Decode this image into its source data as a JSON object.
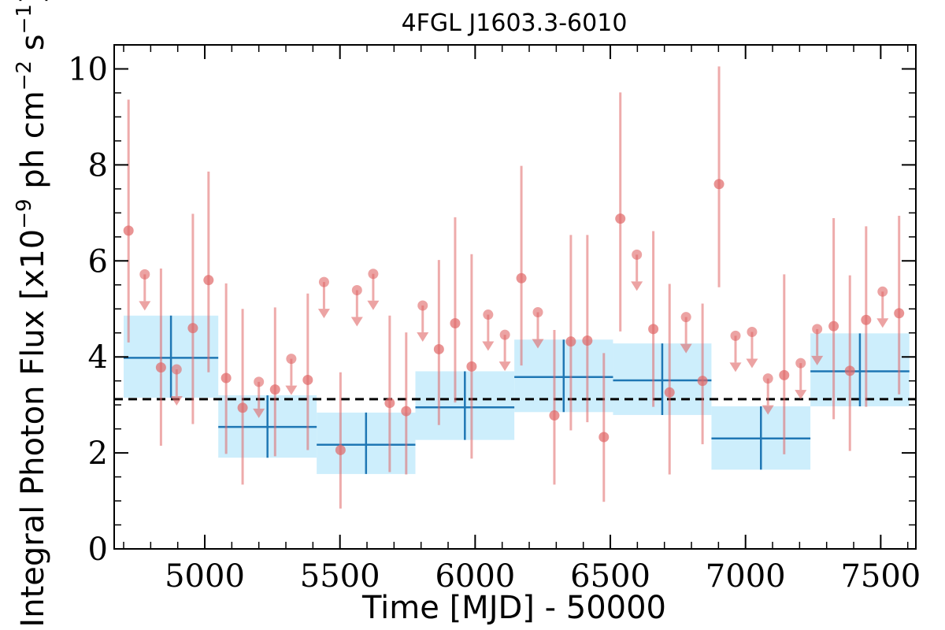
{
  "chart_data": {
    "type": "scatter",
    "title": "4FGL J1603.3-6010",
    "xlabel": "Time [MJD] - 50000",
    "ylabel_main": "Integral Photon Flux [x10",
    "ylabel_exp1": "−9",
    "ylabel_mid": " ph cm",
    "ylabel_exp2": "−2",
    "ylabel_end": " s",
    "ylabel_exp3": "−1",
    "ylabel_close": "]",
    "xlim": [
      4665,
      7630
    ],
    "ylim": [
      0,
      10.5
    ],
    "xticks": [
      {
        "value": 5000,
        "label": "5000"
      },
      {
        "value": 5500,
        "label": "5500"
      },
      {
        "value": 6000,
        "label": "6000"
      },
      {
        "value": 6500,
        "label": "6500"
      },
      {
        "value": 7000,
        "label": "7000"
      },
      {
        "value": 7500,
        "label": "7500"
      }
    ],
    "yticks": [
      {
        "value": 0,
        "label": "0"
      },
      {
        "value": 2,
        "label": "2"
      },
      {
        "value": 4,
        "label": "4"
      },
      {
        "value": 6,
        "label": "6"
      },
      {
        "value": 8,
        "label": "8"
      },
      {
        "value": 10,
        "label": "10"
      }
    ],
    "x_minor_step": 100,
    "y_minor_step": 0.5,
    "reference_line": {
      "y": 3.12,
      "style": "dashed",
      "color": "#000000"
    },
    "colors": {
      "points": "#e06666",
      "bins": "#1f77b4",
      "band": "#cdeefc"
    },
    "short_bins": {
      "detections": [
        {
          "x": 4718,
          "y": 6.63,
          "lo": 4.3,
          "hi": 9.36
        },
        {
          "x": 4838,
          "y": 3.78,
          "lo": 2.15,
          "hi": 5.84
        },
        {
          "x": 4956,
          "y": 4.6,
          "lo": 2.6,
          "hi": 6.98
        },
        {
          "x": 5014,
          "y": 5.6,
          "lo": 3.68,
          "hi": 7.86
        },
        {
          "x": 5079,
          "y": 3.56,
          "lo": 1.98,
          "hi": 5.53
        },
        {
          "x": 5140,
          "y": 2.94,
          "lo": 1.34,
          "hi": 5.0
        },
        {
          "x": 5260,
          "y": 3.32,
          "lo": 1.93,
          "hi": 5.03
        },
        {
          "x": 5381,
          "y": 3.52,
          "lo": 2.06,
          "hi": 5.32
        },
        {
          "x": 5502,
          "y": 2.06,
          "lo": 0.84,
          "hi": 3.68
        },
        {
          "x": 5684,
          "y": 3.04,
          "lo": 1.6,
          "hi": 4.86
        },
        {
          "x": 5745,
          "y": 2.87,
          "lo": 1.55,
          "hi": 4.51
        },
        {
          "x": 5866,
          "y": 4.16,
          "lo": 2.58,
          "hi": 6.02
        },
        {
          "x": 5926,
          "y": 4.7,
          "lo": 3.05,
          "hi": 6.91
        },
        {
          "x": 5987,
          "y": 3.8,
          "lo": 1.88,
          "hi": 6.14
        },
        {
          "x": 6171,
          "y": 5.64,
          "lo": 3.82,
          "hi": 7.98
        },
        {
          "x": 6293,
          "y": 2.78,
          "lo": 1.34,
          "hi": 4.56
        },
        {
          "x": 6354,
          "y": 4.32,
          "lo": 2.47,
          "hi": 6.54
        },
        {
          "x": 6415,
          "y": 4.34,
          "lo": 2.64,
          "hi": 6.54
        },
        {
          "x": 6476,
          "y": 2.33,
          "lo": 0.98,
          "hi": 4.08
        },
        {
          "x": 6537,
          "y": 6.88,
          "lo": 4.53,
          "hi": 9.51
        },
        {
          "x": 6659,
          "y": 4.58,
          "lo": 2.96,
          "hi": 6.62
        },
        {
          "x": 6719,
          "y": 3.26,
          "lo": 1.55,
          "hi": 5.52
        },
        {
          "x": 6841,
          "y": 3.5,
          "lo": 2.18,
          "hi": 5.11
        },
        {
          "x": 6902,
          "y": 7.6,
          "lo": 5.45,
          "hi": 10.05
        },
        {
          "x": 7143,
          "y": 3.62,
          "lo": 1.97,
          "hi": 5.72
        },
        {
          "x": 7326,
          "y": 4.64,
          "lo": 2.7,
          "hi": 6.89
        },
        {
          "x": 7386,
          "y": 3.71,
          "lo": 2.04,
          "hi": 5.7
        },
        {
          "x": 7446,
          "y": 4.77,
          "lo": 2.96,
          "hi": 6.72
        },
        {
          "x": 7568,
          "y": 4.91,
          "lo": 3.22,
          "hi": 6.94
        }
      ],
      "upper_limits": [
        {
          "x": 4778,
          "y": 5.72
        },
        {
          "x": 4896,
          "y": 3.74
        },
        {
          "x": 5200,
          "y": 3.48
        },
        {
          "x": 5320,
          "y": 3.96
        },
        {
          "x": 5441,
          "y": 5.56
        },
        {
          "x": 5563,
          "y": 5.39
        },
        {
          "x": 5623,
          "y": 5.73
        },
        {
          "x": 5806,
          "y": 5.07
        },
        {
          "x": 6048,
          "y": 4.88
        },
        {
          "x": 6110,
          "y": 4.46
        },
        {
          "x": 6232,
          "y": 4.93
        },
        {
          "x": 6598,
          "y": 6.13
        },
        {
          "x": 6780,
          "y": 4.83
        },
        {
          "x": 6963,
          "y": 4.44
        },
        {
          "x": 7024,
          "y": 4.52
        },
        {
          "x": 7083,
          "y": 3.55
        },
        {
          "x": 7204,
          "y": 3.87
        },
        {
          "x": 7265,
          "y": 4.58
        },
        {
          "x": 7507,
          "y": 5.36
        }
      ]
    },
    "long_bins": [
      {
        "x0": 4700,
        "x1": 5050,
        "y": 3.98,
        "lo": 3.15,
        "hi": 4.86
      },
      {
        "x0": 5050,
        "x1": 5414,
        "y": 2.54,
        "lo": 1.9,
        "hi": 3.2
      },
      {
        "x0": 5414,
        "x1": 5779,
        "y": 2.17,
        "lo": 1.56,
        "hi": 2.84
      },
      {
        "x0": 5779,
        "x1": 6145,
        "y": 2.95,
        "lo": 2.27,
        "hi": 3.7
      },
      {
        "x0": 6145,
        "x1": 6510,
        "y": 3.58,
        "lo": 2.85,
        "hi": 4.36
      },
      {
        "x0": 6510,
        "x1": 6874,
        "y": 3.51,
        "lo": 2.79,
        "hi": 4.28
      },
      {
        "x0": 6874,
        "x1": 7240,
        "y": 2.3,
        "lo": 1.65,
        "hi": 2.97
      },
      {
        "x0": 7240,
        "x1": 7606,
        "y": 3.7,
        "lo": 2.97,
        "hi": 4.49
      }
    ]
  }
}
